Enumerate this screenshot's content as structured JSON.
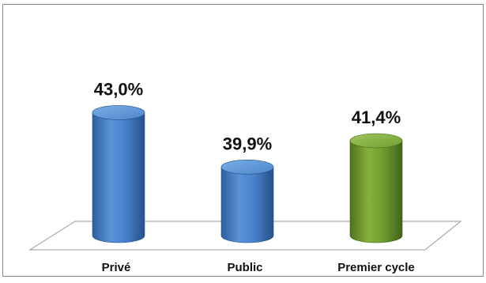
{
  "chart_data": {
    "type": "bar",
    "style": "3d-cylinder",
    "categories": [
      "Privé",
      "Public",
      "Premier cycle"
    ],
    "values": [
      43.0,
      39.9,
      41.4
    ],
    "data_labels": [
      "43,0%",
      "39,9%",
      "41,4%"
    ],
    "bar_colors": [
      "#3f7bc9",
      "#3f7bc9",
      "#6f9a2e"
    ],
    "title": "",
    "xlabel": "",
    "ylabel": "",
    "ylim": [
      36,
      45
    ],
    "grid": false,
    "legend": "none"
  }
}
